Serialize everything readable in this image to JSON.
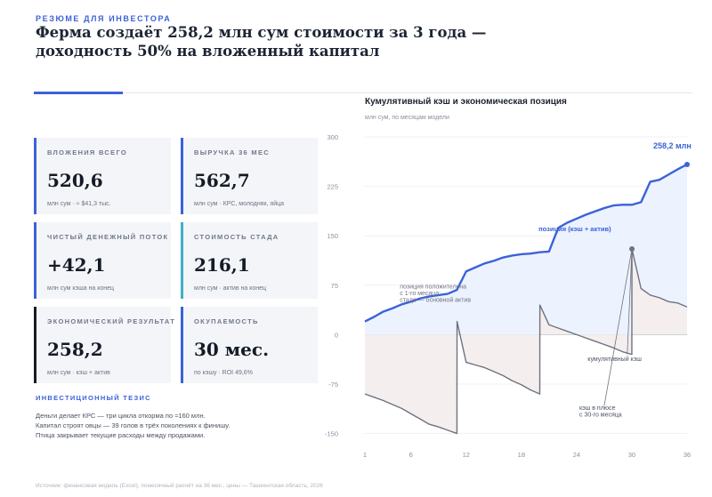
{
  "header": {
    "eyebrow": "РЕЗЮМЕ ДЛЯ ИНВЕСТОРА",
    "headline_line1": "Ферма создаёт 258,2 млн сум стоимости за 3 года —",
    "headline_line2": "доходность 50% на вложенный капитал"
  },
  "cards": [
    {
      "label": "ВЛОЖЕНИЯ ВСЕГО",
      "value": "520,6",
      "sub": "млн сум · ≈ $41,3 тыс."
    },
    {
      "label": "ВЫРУЧКА 36 МЕС",
      "value": "562,7",
      "sub": "млн сум · КРС, молодняк, яйца"
    },
    {
      "label": "ЧИСТЫЙ ДЕНЕЖНЫЙ ПОТОК",
      "value": "+42,1",
      "sub": "млн сум кэша на конец"
    },
    {
      "label": "СТОИМОСТЬ СТАДА",
      "value": "216,1",
      "sub": "млн сум · актив на конец"
    },
    {
      "label": "ЭКОНОМИЧЕСКИЙ РЕЗУЛЬТАТ",
      "value": "258,2",
      "sub": "млн сум · кэш + актив"
    },
    {
      "label": "ОКУПАЕМОСТЬ",
      "value": "30 мес.",
      "sub": "по кэшу · ROI 49,6%"
    }
  ],
  "colors": {
    "accent": "#3c62d8",
    "cash_line": "#6e7381",
    "positive_fill": "#edf2ff",
    "negative_fill": "#f4eeee"
  },
  "thesis": {
    "title": "ИНВЕСТИЦИОННЫЙ ТЕЗИС",
    "lines": [
      "Деньги делает КРС — три цикла откорма по ≈160 млн.",
      "Капитал строят овцы — 39 голов в трёх поколениях к финишу.",
      "Птица закрывает текущие расходы между продажами."
    ]
  },
  "footer": "Источник: финансовая модель (Excel), помесячный расчёт на 36 мес.; цены — Ташкентская область, 2026",
  "chart_data": {
    "type": "line",
    "title": "Кумулятивный кэш и экономическая позиция",
    "subtitle": "млн сум, по месяцам модели",
    "xlabel": "",
    "ylabel": "",
    "x_ticks": [
      1,
      6,
      12,
      18,
      24,
      30,
      36
    ],
    "y_ticks": [
      -150,
      -75,
      0,
      75,
      150,
      225,
      300
    ],
    "xlim": [
      1,
      36
    ],
    "ylim": [
      -160,
      300
    ],
    "grid": true,
    "series": [
      {
        "name": "позиция (кэш + актив)",
        "x": [
          1,
          2,
          3,
          4,
          5,
          6,
          7,
          8,
          9,
          10,
          11,
          12,
          13,
          14,
          15,
          16,
          17,
          18,
          19,
          20,
          21,
          22,
          23,
          24,
          25,
          26,
          27,
          28,
          29,
          30,
          31,
          32,
          33,
          34,
          35,
          36
        ],
        "values": [
          20,
          27,
          35,
          40,
          46,
          50,
          55,
          58,
          60,
          62,
          68,
          96,
          102,
          108,
          112,
          117,
          120,
          122,
          123,
          125,
          126,
          162,
          170,
          176,
          182,
          187,
          192,
          196,
          197,
          197,
          201,
          232,
          235,
          243,
          251,
          258.2
        ]
      },
      {
        "name": "кумулятивный кэш",
        "x": [
          1,
          2,
          3,
          4,
          5,
          6,
          7,
          8,
          9,
          10,
          11,
          11.01,
          12,
          13,
          14,
          15,
          16,
          17,
          18,
          19,
          20,
          20.01,
          21,
          22,
          23,
          24,
          25,
          26,
          27,
          28,
          29,
          30,
          30.01,
          31,
          32,
          33,
          34,
          35,
          36
        ],
        "values": [
          -90,
          -95,
          -100,
          -106,
          -112,
          -120,
          -128,
          -136,
          -140,
          -145,
          -150,
          20,
          -42,
          -46,
          -50,
          -56,
          -62,
          -70,
          -76,
          -84,
          -90,
          45,
          15,
          10,
          5,
          0,
          -5,
          -10,
          -15,
          -20,
          -26,
          -30,
          130,
          70,
          60,
          56,
          50,
          48,
          42
        ]
      }
    ],
    "annotations": [
      {
        "text": "258,2 млн",
        "x": 36,
        "y": 258.2
      },
      {
        "text": "позиция (кэш + актив)",
        "x": 24,
        "y": 160
      },
      {
        "text": "позиция положительна",
        "x": 1,
        "y": 70
      },
      {
        "text": "с 1-го месяца:",
        "x": 1,
        "y": 60
      },
      {
        "text": "стадо — основной актив",
        "x": 1,
        "y": 50
      },
      {
        "text": "кумулятивный кэш",
        "x": 30,
        "y": -38
      },
      {
        "text": "кэш в плюсе",
        "x": 24,
        "y": -112
      },
      {
        "text": "с 30-го месяца",
        "x": 24,
        "y": -122
      }
    ]
  }
}
